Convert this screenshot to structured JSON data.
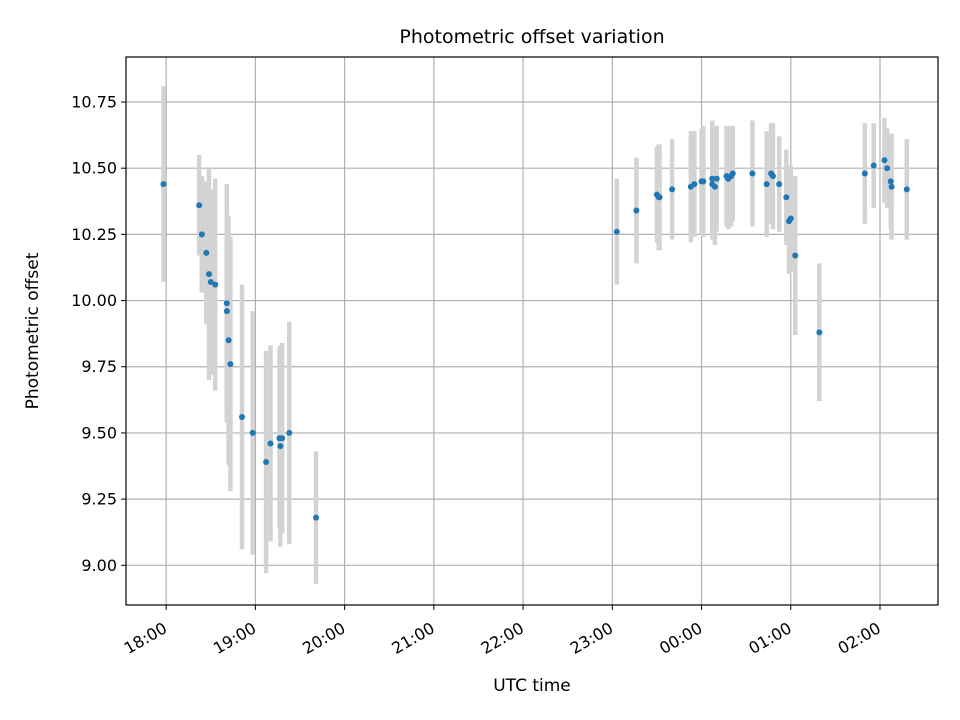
{
  "chart_data": {
    "type": "scatter",
    "title": "Photometric offset variation",
    "xlabel": "UTC time",
    "ylabel": "Photometric offset",
    "xlim": [
      -0.45,
      8.65
    ],
    "ylim": [
      8.85,
      10.92
    ],
    "x_unit": "hours after 18:00 UTC",
    "grid": true,
    "marker_color": "#1f77b4",
    "errorbar_color": "#d3d3d3",
    "x_ticks": [
      0,
      1,
      2,
      3,
      4,
      5,
      6,
      7,
      8
    ],
    "x_tick_labels": [
      "18:00",
      "19:00",
      "20:00",
      "21:00",
      "22:00",
      "23:00",
      "00:00",
      "01:00",
      "02:00"
    ],
    "y_ticks": [
      9.0,
      9.25,
      9.5,
      9.75,
      10.0,
      10.25,
      10.5,
      10.75
    ],
    "y_tick_labels": [
      "9.00",
      "9.25",
      "9.50",
      "9.75",
      "10.00",
      "10.25",
      "10.50",
      "10.75"
    ],
    "series": [
      {
        "name": "Photometric offset",
        "x": [
          -0.03,
          0.37,
          0.4,
          0.45,
          0.48,
          0.5,
          0.55,
          0.68,
          0.68,
          0.7,
          0.72,
          0.85,
          0.97,
          1.12,
          1.17,
          1.27,
          1.28,
          1.3,
          1.38,
          1.68,
          5.05,
          5.27,
          5.5,
          5.52,
          5.53,
          5.67,
          5.88,
          5.92,
          6.0,
          6.02,
          6.12,
          6.12,
          6.15,
          6.17,
          6.28,
          6.3,
          6.33,
          6.35,
          6.57,
          6.73,
          6.78,
          6.8,
          6.87,
          6.95,
          6.98,
          7.0,
          7.05,
          7.32,
          7.83,
          7.93,
          8.05,
          8.08,
          8.12,
          8.13,
          8.3
        ],
        "y": [
          10.44,
          10.36,
          10.25,
          10.18,
          10.1,
          10.07,
          10.06,
          9.99,
          9.96,
          9.85,
          9.76,
          9.56,
          9.5,
          9.39,
          9.46,
          9.48,
          9.45,
          9.48,
          9.5,
          9.18,
          10.26,
          10.34,
          10.4,
          10.39,
          10.39,
          10.42,
          10.43,
          10.44,
          10.45,
          10.45,
          10.44,
          10.46,
          10.43,
          10.46,
          10.47,
          10.46,
          10.47,
          10.48,
          10.48,
          10.44,
          10.48,
          10.47,
          10.44,
          10.39,
          10.3,
          10.31,
          10.17,
          9.88,
          10.48,
          10.51,
          10.53,
          10.5,
          10.45,
          10.43,
          10.42
        ],
        "err": [
          0.37,
          0.19,
          0.22,
          0.27,
          0.4,
          0.35,
          0.4,
          0.45,
          0.36,
          0.47,
          0.48,
          0.5,
          0.46,
          0.42,
          0.37,
          0.34,
          0.38,
          0.36,
          0.42,
          0.25,
          0.2,
          0.2,
          0.18,
          0.2,
          0.2,
          0.19,
          0.21,
          0.2,
          0.2,
          0.21,
          0.21,
          0.22,
          0.22,
          0.2,
          0.19,
          0.19,
          0.19,
          0.18,
          0.2,
          0.2,
          0.19,
          0.2,
          0.18,
          0.18,
          0.2,
          0.2,
          0.3,
          0.26,
          0.19,
          0.16,
          0.16,
          0.15,
          0.18,
          0.2,
          0.19
        ]
      }
    ]
  }
}
